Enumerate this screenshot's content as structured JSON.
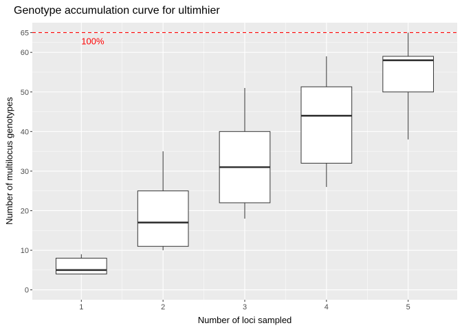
{
  "chart_data": {
    "type": "boxplot",
    "title": "Genotype accumulation curve for ultimhier",
    "xlabel": "Number of loci sampled",
    "ylabel": "Number of multilocus genotypes",
    "categories": [
      "1",
      "2",
      "3",
      "4",
      "5"
    ],
    "y_ticks": [
      0,
      10,
      20,
      30,
      40,
      50,
      60,
      65
    ],
    "ylim": [
      -2.5,
      67.5
    ],
    "grid": true,
    "reference_line": {
      "value": 65,
      "label": "100%",
      "color": "#ff0000",
      "style": "dashed"
    },
    "boxes": [
      {
        "category": "1",
        "min": 4,
        "q1": 4,
        "median": 5,
        "q3": 8,
        "max": 9
      },
      {
        "category": "2",
        "min": 10,
        "q1": 11,
        "median": 17,
        "q3": 25,
        "max": 35
      },
      {
        "category": "3",
        "min": 18,
        "q1": 22,
        "median": 31,
        "q3": 40,
        "max": 51
      },
      {
        "category": "4",
        "min": 26,
        "q1": 32,
        "median": 44,
        "q3": 51.3,
        "max": 59
      },
      {
        "category": "5",
        "min": 38,
        "q1": 50,
        "median": 58,
        "q3": 59,
        "max": 65
      }
    ],
    "colors": {
      "panel": "#ebebeb",
      "grid": "#ffffff",
      "box_fill": "#ffffff",
      "box_stroke": "#333333",
      "reference": "#ff0000"
    }
  }
}
